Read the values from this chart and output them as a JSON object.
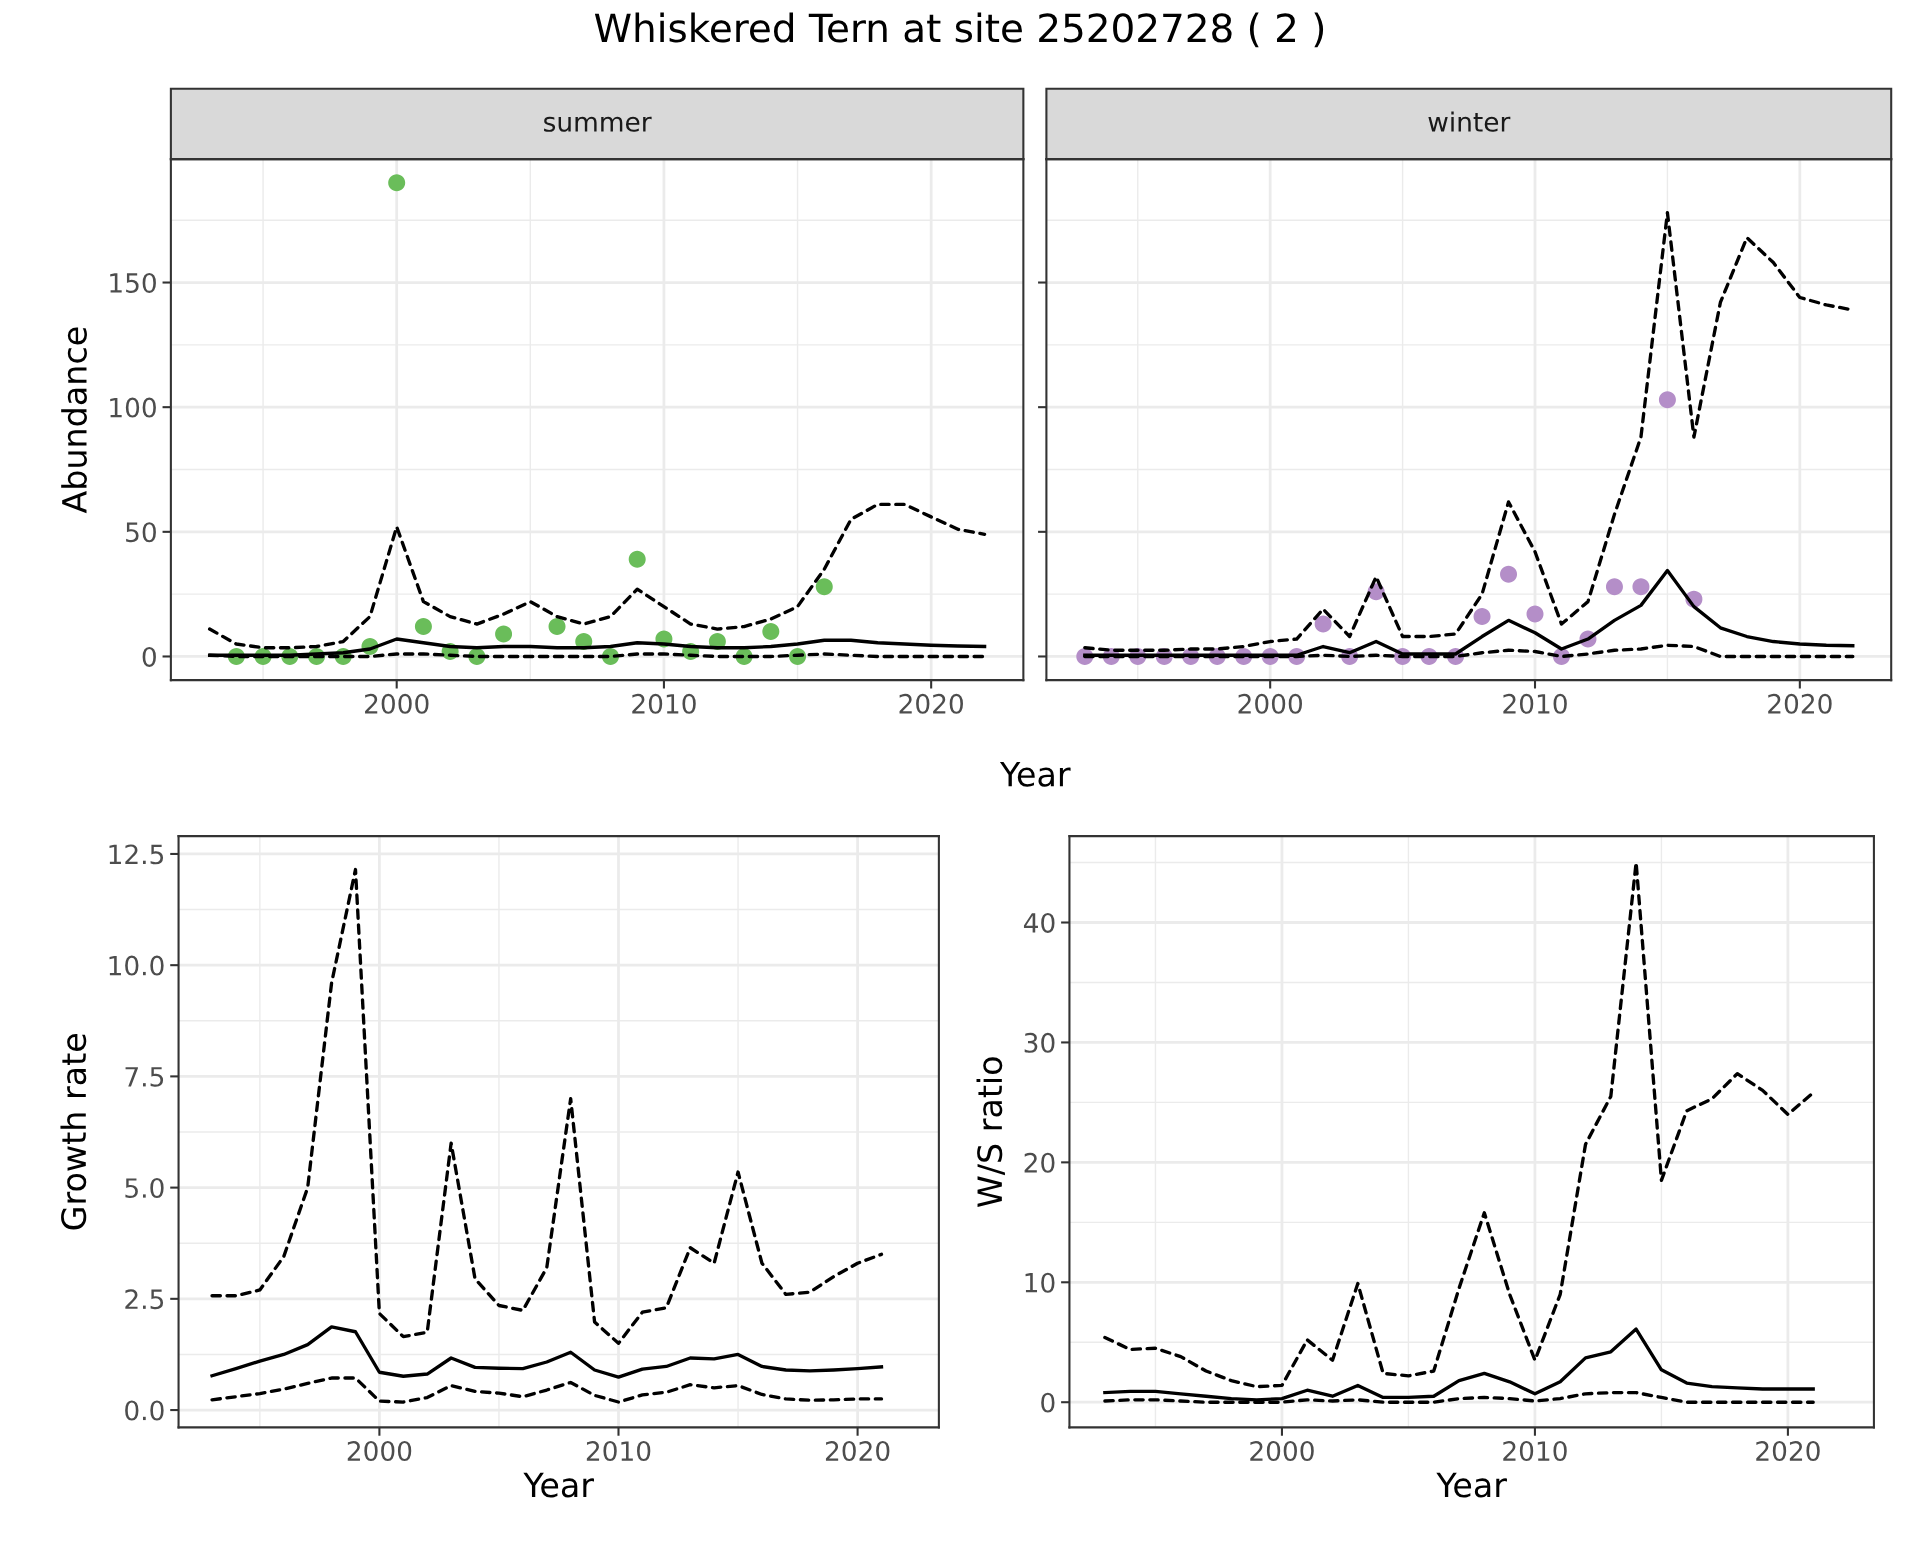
{
  "chart_data": [
    {
      "type": "line",
      "title": "Whiskered Tern at site 25202728 ( 2 )",
      "subtitle": "summer",
      "xlabel": "Year",
      "ylabel": "Abundance",
      "xlim": [
        1991.55,
        2023.45
      ],
      "ylim": [
        -9.5,
        199.5
      ],
      "xticks": [
        2000,
        2010,
        2020
      ],
      "yticks": [
        0,
        50,
        100,
        150
      ],
      "grid": true,
      "series": [
        {
          "type": "line",
          "line_style": "dashed",
          "color": "#000000",
          "x": [
            1993,
            1994,
            1995,
            1996,
            1997,
            1998,
            1999,
            2000,
            2001,
            2002,
            2003,
            2004,
            2005,
            2006,
            2007,
            2008,
            2009,
            2010,
            2011,
            2012,
            2013,
            2014,
            2015,
            2016,
            2017,
            2018,
            2019,
            2020,
            2021,
            2022
          ],
          "values": [
            11,
            5,
            3.5,
            3.5,
            4,
            6,
            16,
            52,
            22,
            16,
            13,
            17,
            22,
            16,
            13,
            16,
            27,
            20,
            13,
            11,
            12,
            15,
            20,
            35,
            55,
            61,
            61,
            56,
            51,
            49
          ]
        },
        {
          "type": "line",
          "line_style": "dashed",
          "color": "#000000",
          "x": [
            1993,
            1994,
            1995,
            1996,
            1997,
            1998,
            1999,
            2000,
            2001,
            2002,
            2003,
            2004,
            2005,
            2006,
            2007,
            2008,
            2009,
            2010,
            2011,
            2012,
            2013,
            2014,
            2015,
            2016,
            2017,
            2018,
            2019,
            2020,
            2021,
            2022
          ],
          "values": [
            0.5,
            0,
            0,
            0,
            0,
            0,
            0,
            1,
            1,
            0.5,
            0,
            0,
            0,
            0,
            0,
            0,
            1,
            1,
            0.5,
            0,
            0,
            0,
            0.5,
            1,
            0.5,
            0,
            0,
            0,
            0,
            0
          ]
        },
        {
          "type": "line",
          "line_style": "solid",
          "color": "#000000",
          "x": [
            1993,
            1994,
            1995,
            1996,
            1997,
            1998,
            1999,
            2000,
            2001,
            2002,
            2003,
            2004,
            2005,
            2006,
            2007,
            2008,
            2009,
            2010,
            2011,
            2012,
            2013,
            2014,
            2015,
            2016,
            2017,
            2018,
            2019,
            2020,
            2021,
            2022
          ],
          "values": [
            0.5,
            0.5,
            0.5,
            0.5,
            1,
            1.5,
            3,
            7,
            5.5,
            4,
            3.5,
            4,
            4,
            3.5,
            3.5,
            4,
            5.5,
            5,
            4,
            3.5,
            3.5,
            4,
            5,
            6.5,
            6.5,
            5.5,
            5,
            4.5,
            4.2,
            4
          ]
        },
        {
          "type": "scatter",
          "marker": "circle",
          "color": "#6abd5a",
          "x": [
            1994,
            1995,
            1996,
            1997,
            1998,
            1999,
            2000,
            2001,
            2002,
            2003,
            2004,
            2005,
            2006,
            2007,
            2008,
            2009,
            2010,
            2011,
            2012,
            2013,
            2014,
            2015,
            2016
          ],
          "values": [
            0,
            0,
            0,
            0,
            0,
            4,
            190,
            12,
            2,
            0,
            9,
            null,
            12,
            6,
            0,
            39,
            7,
            2,
            6,
            0,
            10,
            0,
            28
          ]
        }
      ]
    },
    {
      "type": "line",
      "subtitle": "winter",
      "xlim": [
        1991.55,
        2023.45
      ],
      "ylim": [
        -9.5,
        199.5
      ],
      "xticks": [
        2000,
        2010,
        2020
      ],
      "yticks": [
        0,
        50,
        100,
        150
      ],
      "tick_labels": "x",
      "grid": true,
      "series": [
        {
          "type": "line",
          "line_style": "dashed",
          "color": "#000000",
          "x": [
            1993,
            1994,
            1995,
            1996,
            1997,
            1998,
            1999,
            2000,
            2001,
            2002,
            2003,
            2004,
            2005,
            2006,
            2007,
            2008,
            2009,
            2010,
            2011,
            2012,
            2013,
            2014,
            2015,
            2016,
            2017,
            2018,
            2019,
            2020,
            2021,
            2022
          ],
          "values": [
            3.5,
            2.5,
            2.5,
            2.5,
            3,
            3,
            4,
            6,
            7,
            19,
            8,
            32,
            8,
            8,
            9,
            25,
            62,
            42,
            13,
            22,
            57,
            88,
            178,
            88,
            142,
            168,
            158,
            144,
            141,
            139
          ]
        },
        {
          "type": "line",
          "line_style": "dashed",
          "color": "#000000",
          "x": [
            1993,
            1994,
            1995,
            1996,
            1997,
            1998,
            1999,
            2000,
            2001,
            2002,
            2003,
            2004,
            2005,
            2006,
            2007,
            2008,
            2009,
            2010,
            2011,
            2012,
            2013,
            2014,
            2015,
            2016,
            2017,
            2018,
            2019,
            2020,
            2021,
            2022
          ],
          "values": [
            0,
            0,
            0,
            0,
            0,
            0,
            0,
            0,
            0,
            0.5,
            0,
            0.5,
            0,
            0,
            0,
            1.5,
            2.5,
            2,
            0,
            1,
            2.5,
            3,
            4.5,
            4,
            0,
            0,
            0,
            0,
            0,
            0
          ]
        },
        {
          "type": "line",
          "line_style": "solid",
          "color": "#000000",
          "x": [
            1993,
            1994,
            1995,
            1996,
            1997,
            1998,
            1999,
            2000,
            2001,
            2002,
            2003,
            2004,
            2005,
            2006,
            2007,
            2008,
            2009,
            2010,
            2011,
            2012,
            2013,
            2014,
            2015,
            2016,
            2017,
            2018,
            2019,
            2020,
            2021,
            2022
          ],
          "values": [
            0.5,
            0.5,
            0.5,
            0.5,
            0.5,
            0.5,
            0.5,
            0.5,
            0.5,
            4,
            1.5,
            6,
            1,
            1,
            1,
            8,
            14.5,
            9.5,
            3,
            7,
            14.5,
            20.5,
            34.5,
            20,
            11.5,
            8,
            6,
            5,
            4.5,
            4.3
          ]
        },
        {
          "type": "scatter",
          "marker": "circle",
          "color": "#b48ec8",
          "x": [
            1993,
            1994,
            1995,
            1996,
            1997,
            1998,
            1999,
            2000,
            2001,
            2002,
            2003,
            2004,
            2005,
            2006,
            2007,
            2008,
            2009,
            2010,
            2011,
            2012,
            2013,
            2014,
            2015,
            2016
          ],
          "values": [
            0,
            0,
            0,
            0,
            0,
            0,
            0,
            0,
            0,
            13,
            0,
            26,
            0,
            0,
            0,
            16,
            33,
            17,
            0,
            7,
            28,
            28,
            103,
            23
          ]
        }
      ]
    },
    {
      "type": "line",
      "xlabel": "Year",
      "ylabel": "Growth rate",
      "xlim": [
        1991.6,
        2023.4
      ],
      "ylim": [
        -0.39,
        12.9
      ],
      "xticks": [
        2000,
        2010,
        2020
      ],
      "yticks": [
        {
          "value": 0,
          "label": "0.0"
        },
        2.5,
        {
          "value": 5,
          "label": "5.0"
        },
        7.5,
        {
          "value": 10,
          "label": "10.0"
        },
        12.5
      ],
      "grid": true,
      "series": [
        {
          "type": "line",
          "line_style": "dashed",
          "color": "#000000",
          "x": [
            1993,
            1994,
            1995,
            1996,
            1997,
            1998,
            1999,
            2000,
            2001,
            2002,
            2003,
            2004,
            2005,
            2006,
            2007,
            2008,
            2009,
            2010,
            2011,
            2012,
            2013,
            2014,
            2015,
            2016,
            2017,
            2018,
            2019,
            2020,
            2021
          ],
          "values": [
            2.57,
            2.57,
            2.7,
            3.45,
            5,
            9.6,
            12.15,
            2.17,
            1.65,
            1.75,
            6,
            2.95,
            2.35,
            2.24,
            3.2,
            7.0,
            1.98,
            1.5,
            2.2,
            2.3,
            3.65,
            3.3,
            5.35,
            3.3,
            2.6,
            2.65,
            3.0,
            3.3,
            3.5
          ]
        },
        {
          "type": "line",
          "line_style": "dashed",
          "color": "#000000",
          "x": [
            1993,
            1994,
            1995,
            1996,
            1997,
            1998,
            1999,
            2000,
            2001,
            2002,
            2003,
            2004,
            2005,
            2006,
            2007,
            2008,
            2009,
            2010,
            2011,
            2012,
            2013,
            2014,
            2015,
            2016,
            2017,
            2018,
            2019,
            2020,
            2021
          ],
          "values": [
            0.23,
            0.3,
            0.37,
            0.47,
            0.6,
            0.72,
            0.72,
            0.2,
            0.18,
            0.28,
            0.55,
            0.42,
            0.38,
            0.3,
            0.45,
            0.62,
            0.33,
            0.18,
            0.34,
            0.4,
            0.57,
            0.5,
            0.55,
            0.35,
            0.25,
            0.22,
            0.23,
            0.25,
            0.25
          ]
        },
        {
          "type": "line",
          "line_style": "solid",
          "color": "#000000",
          "x": [
            1993,
            1994,
            1995,
            1996,
            1997,
            1998,
            1999,
            2000,
            2001,
            2002,
            2003,
            2004,
            2005,
            2006,
            2007,
            2008,
            2009,
            2010,
            2011,
            2012,
            2013,
            2014,
            2015,
            2016,
            2017,
            2018,
            2019,
            2020,
            2021
          ],
          "values": [
            0.77,
            0.93,
            1.1,
            1.25,
            1.47,
            1.87,
            1.76,
            0.85,
            0.76,
            0.81,
            1.17,
            0.96,
            0.94,
            0.93,
            1.08,
            1.3,
            0.9,
            0.74,
            0.92,
            0.98,
            1.17,
            1.15,
            1.25,
            0.98,
            0.9,
            0.88,
            0.9,
            0.93,
            0.97
          ]
        }
      ]
    },
    {
      "type": "line",
      "xlabel": "Year",
      "ylabel": "W/S ratio",
      "xlim": [
        1991.6,
        2023.4
      ],
      "ylim": [
        -2.1,
        47.2
      ],
      "xticks": [
        2000,
        2010,
        2020
      ],
      "yticks": [
        0,
        10,
        20,
        30,
        40
      ],
      "grid": true,
      "series": [
        {
          "type": "line",
          "line_style": "dashed",
          "color": "#000000",
          "x": [
            1993,
            1994,
            1995,
            1996,
            1997,
            1998,
            1999,
            2000,
            2001,
            2002,
            2003,
            2004,
            2005,
            2006,
            2007,
            2008,
            2009,
            2010,
            2011,
            2012,
            2013,
            2014,
            2015,
            2016,
            2017,
            2018,
            2019,
            2020,
            2021
          ],
          "values": [
            5.4,
            4.4,
            4.5,
            3.8,
            2.6,
            1.8,
            1.3,
            1.4,
            5.2,
            3.5,
            9.9,
            2.4,
            2.2,
            2.6,
            9.5,
            15.8,
            9,
            3.5,
            9,
            21.5,
            25.5,
            45,
            18.5,
            24.3,
            25.3,
            27.4,
            26,
            24,
            25.8
          ]
        },
        {
          "type": "line",
          "line_style": "dashed",
          "color": "#000000",
          "x": [
            1993,
            1994,
            1995,
            1996,
            1997,
            1998,
            1999,
            2000,
            2001,
            2002,
            2003,
            2004,
            2005,
            2006,
            2007,
            2008,
            2009,
            2010,
            2011,
            2012,
            2013,
            2014,
            2015,
            2016,
            2017,
            2018,
            2019,
            2020,
            2021
          ],
          "values": [
            0.1,
            0.2,
            0.2,
            0.1,
            0,
            0,
            0,
            0,
            0.2,
            0.1,
            0.2,
            0,
            0,
            0,
            0.3,
            0.4,
            0.3,
            0.1,
            0.3,
            0.7,
            0.8,
            0.8,
            0.4,
            0,
            0,
            0,
            0,
            0,
            0
          ]
        },
        {
          "type": "line",
          "line_style": "solid",
          "color": "#000000",
          "x": [
            1993,
            1994,
            1995,
            1996,
            1997,
            1998,
            1999,
            2000,
            2001,
            2002,
            2003,
            2004,
            2005,
            2006,
            2007,
            2008,
            2009,
            2010,
            2011,
            2012,
            2013,
            2014,
            2015,
            2016,
            2017,
            2018,
            2019,
            2020,
            2021
          ],
          "values": [
            0.8,
            0.9,
            0.9,
            0.7,
            0.5,
            0.3,
            0.2,
            0.3,
            1.0,
            0.5,
            1.4,
            0.4,
            0.4,
            0.5,
            1.8,
            2.4,
            1.7,
            0.7,
            1.7,
            3.7,
            4.2,
            6.1,
            2.7,
            1.6,
            1.3,
            1.2,
            1.1,
            1.1,
            1.1
          ]
        }
      ]
    }
  ]
}
